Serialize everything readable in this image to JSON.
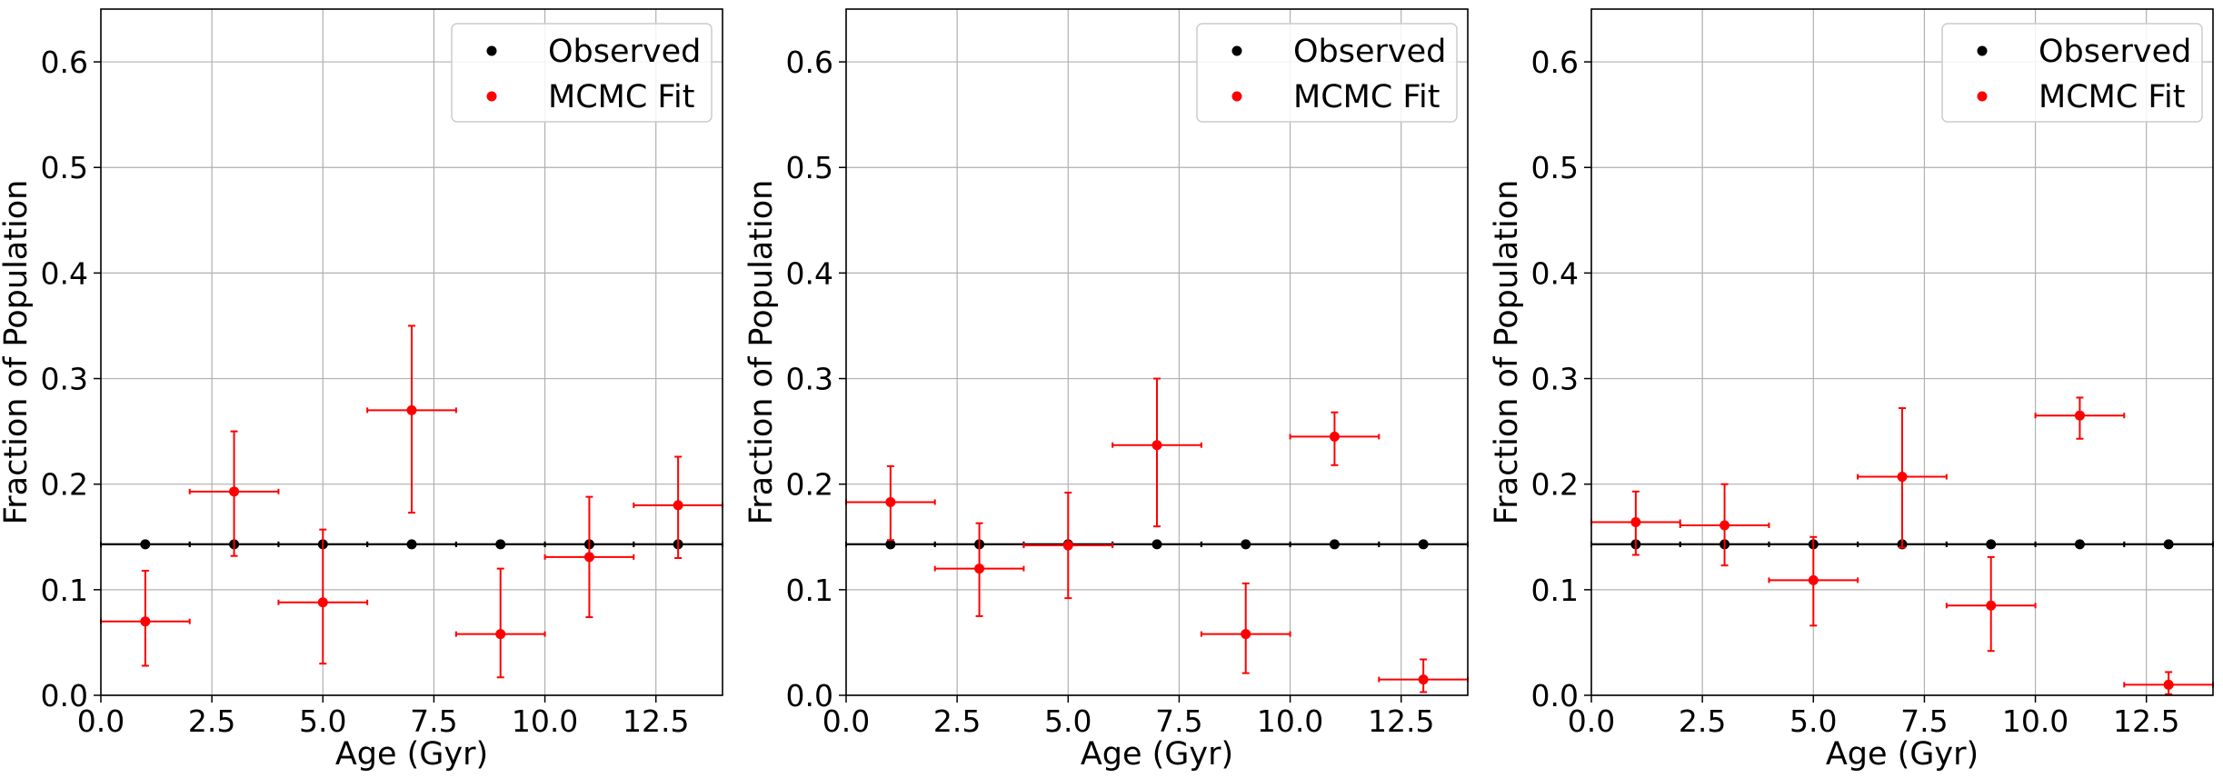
{
  "chart_data": [
    {
      "type": "scatter",
      "xlabel": "Age (Gyr)",
      "ylabel": "Fraction of Population",
      "xlim": [
        0,
        14
      ],
      "ylim": [
        0,
        0.65
      ],
      "xticks": [
        "0.0",
        "2.5",
        "5.0",
        "7.5",
        "10.0",
        "12.5"
      ],
      "yticks": [
        "0.0",
        "0.1",
        "0.2",
        "0.3",
        "0.4",
        "0.5",
        "0.6"
      ],
      "grid": true,
      "legend_position": "top-right",
      "reference_line": 0.143,
      "series": [
        {
          "name": "Observed",
          "color": "#000000",
          "x": [
            1,
            3,
            5,
            7,
            9,
            11,
            13
          ],
          "y": [
            0.143,
            0.143,
            0.143,
            0.143,
            0.143,
            0.143,
            0.143
          ],
          "xerr": [
            1,
            1,
            1,
            1,
            1,
            1,
            1
          ]
        },
        {
          "name": "MCMC Fit",
          "color": "#ff0000",
          "x": [
            1,
            3,
            5,
            7,
            9,
            11,
            13
          ],
          "y": [
            0.07,
            0.193,
            0.088,
            0.27,
            0.058,
            0.131,
            0.18
          ],
          "yerr_low": [
            0.028,
            0.132,
            0.03,
            0.173,
            0.017,
            0.074,
            0.13
          ],
          "yerr_high": [
            0.118,
            0.25,
            0.157,
            0.35,
            0.12,
            0.188,
            0.226
          ],
          "xerr": [
            1,
            1,
            1,
            1,
            1,
            1,
            1
          ]
        }
      ]
    },
    {
      "type": "scatter",
      "xlabel": "Age (Gyr)",
      "ylabel": "Fraction of Population",
      "xlim": [
        0,
        14
      ],
      "ylim": [
        0,
        0.65
      ],
      "xticks": [
        "0.0",
        "2.5",
        "5.0",
        "7.5",
        "10.0",
        "12.5"
      ],
      "yticks": [
        "0.0",
        "0.1",
        "0.2",
        "0.3",
        "0.4",
        "0.5",
        "0.6"
      ],
      "grid": true,
      "legend_position": "top-right",
      "reference_line": 0.143,
      "series": [
        {
          "name": "Observed",
          "color": "#000000",
          "x": [
            1,
            3,
            5,
            7,
            9,
            11,
            13
          ],
          "y": [
            0.143,
            0.143,
            0.143,
            0.143,
            0.143,
            0.143,
            0.143
          ],
          "xerr": [
            1,
            1,
            1,
            1,
            1,
            1,
            1
          ]
        },
        {
          "name": "MCMC Fit",
          "color": "#ff0000",
          "x": [
            1,
            3,
            5,
            7,
            9,
            11,
            13
          ],
          "y": [
            0.183,
            0.12,
            0.142,
            0.237,
            0.058,
            0.245,
            0.015
          ],
          "yerr_low": [
            0.147,
            0.075,
            0.092,
            0.16,
            0.021,
            0.218,
            0.003
          ],
          "yerr_high": [
            0.217,
            0.163,
            0.192,
            0.3,
            0.106,
            0.268,
            0.034
          ],
          "xerr": [
            1,
            1,
            1,
            1,
            1,
            1,
            1
          ]
        }
      ]
    },
    {
      "type": "scatter",
      "xlabel": "Age (Gyr)",
      "ylabel": "Fraction of Population",
      "xlim": [
        0,
        14
      ],
      "ylim": [
        0,
        0.65
      ],
      "xticks": [
        "0.0",
        "2.5",
        "5.0",
        "7.5",
        "10.0",
        "12.5"
      ],
      "yticks": [
        "0.0",
        "0.1",
        "0.2",
        "0.3",
        "0.4",
        "0.5",
        "0.6"
      ],
      "grid": true,
      "legend_position": "top-right",
      "reference_line": 0.143,
      "series": [
        {
          "name": "Observed",
          "color": "#000000",
          "x": [
            1,
            3,
            5,
            7,
            9,
            11,
            13
          ],
          "y": [
            0.143,
            0.143,
            0.143,
            0.143,
            0.143,
            0.143,
            0.143
          ],
          "xerr": [
            1,
            1,
            1,
            1,
            1,
            1,
            1
          ]
        },
        {
          "name": "MCMC Fit",
          "color": "#ff0000",
          "x": [
            1,
            3,
            5,
            7,
            9,
            11,
            13
          ],
          "y": [
            0.164,
            0.161,
            0.109,
            0.207,
            0.085,
            0.265,
            0.01
          ],
          "yerr_low": [
            0.133,
            0.123,
            0.066,
            0.14,
            0.042,
            0.243,
            0.001
          ],
          "yerr_high": [
            0.193,
            0.2,
            0.15,
            0.272,
            0.131,
            0.282,
            0.022
          ],
          "xerr": [
            1,
            1,
            1,
            1,
            1,
            1,
            1
          ]
        }
      ]
    }
  ]
}
